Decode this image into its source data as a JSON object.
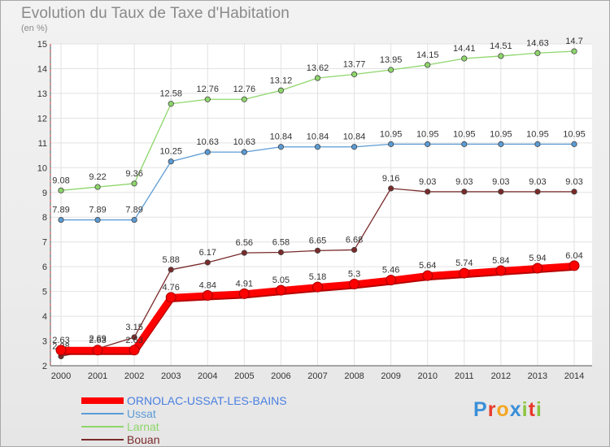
{
  "header": {
    "title": "Evolution du Taux de Taxe d'Habitation",
    "unit": "(en %)"
  },
  "brand": {
    "letters": [
      "P",
      "r",
      "o",
      "x",
      "i",
      "t",
      "i"
    ],
    "colors": [
      "#3a8fd8",
      "#e83a2c",
      "#f5a623",
      "#3a8fd8",
      "#8bc53f",
      "#e83a2c",
      "#8bc53f"
    ]
  },
  "chart_data": {
    "type": "line",
    "title": "Evolution du Taux de Taxe d'Habitation",
    "ylabel": "(en %)",
    "xlabel": "",
    "x": [
      "2000",
      "2001",
      "2002",
      "2003",
      "2004",
      "2005",
      "2006",
      "2007",
      "2008",
      "2009",
      "2010",
      "2011",
      "2012",
      "2013",
      "2014"
    ],
    "ylim": [
      2,
      15
    ],
    "yticks": [
      2,
      3,
      4,
      5,
      6,
      7,
      8,
      9,
      10,
      11,
      12,
      13,
      14,
      15
    ],
    "grid": true,
    "legend_position": "bottom-left",
    "series": [
      {
        "name": "ORNOLAC-USSAT-LES-BAINS",
        "color": "#ff0000",
        "values": [
          2.63,
          2.63,
          2.63,
          4.76,
          4.84,
          4.91,
          5.05,
          5.18,
          5.3,
          5.46,
          5.64,
          5.74,
          5.84,
          5.94,
          6.04
        ],
        "labels": [
          "2.63",
          "2.63",
          "2.63",
          "4.76",
          "4.84",
          "4.91",
          "5.05",
          "5.18",
          "5.3",
          "5.46",
          "5.64",
          "5.74",
          "5.84",
          "5.94",
          "6.04"
        ]
      },
      {
        "name": "Ussat",
        "color": "#5b9bd5",
        "values": [
          7.89,
          7.89,
          7.89,
          10.25,
          10.63,
          10.63,
          10.84,
          10.84,
          10.84,
          10.95,
          10.95,
          10.95,
          10.95,
          10.95,
          10.95
        ],
        "labels": [
          "7.89",
          "7.89",
          "7.89",
          "10.25",
          "10.63",
          "10.63",
          "10.84",
          "10.84",
          "10.84",
          "10.95",
          "10.95",
          "10.95",
          "10.95",
          "10.95",
          "10.95"
        ]
      },
      {
        "name": "Larnat",
        "color": "#8ed66b",
        "values": [
          9.08,
          9.22,
          9.36,
          12.58,
          12.76,
          12.76,
          13.12,
          13.62,
          13.77,
          13.95,
          14.15,
          14.41,
          14.51,
          14.63,
          14.7
        ],
        "labels": [
          "9.08",
          "9.22",
          "9.36",
          "12.58",
          "12.76",
          "12.76",
          "13.12",
          "13.62",
          "13.77",
          "13.95",
          "14.15",
          "14.41",
          "14.51",
          "14.63",
          "14.7"
        ]
      },
      {
        "name": "Bouan",
        "color": "#7a2a2a",
        "values": [
          2.38,
          2.69,
          3.15,
          5.88,
          6.17,
          6.56,
          6.58,
          6.65,
          6.68,
          9.16,
          9.03,
          9.03,
          9.03,
          9.03,
          9.03
        ],
        "labels": [
          "2.38",
          "2.69",
          "3.15",
          "5.88",
          "6.17",
          "6.56",
          "6.58",
          "6.65",
          "6.68",
          "9.16",
          "9.03",
          "9.03",
          "9.03",
          "9.03",
          "9.03"
        ]
      }
    ]
  }
}
